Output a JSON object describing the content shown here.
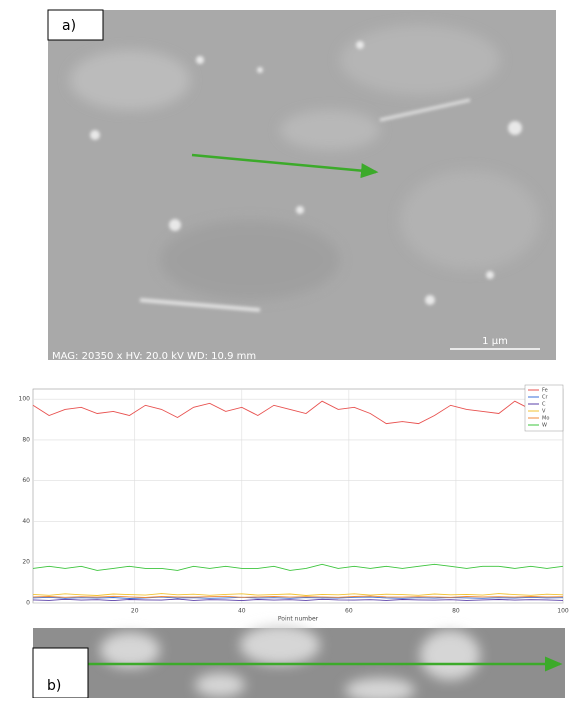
{
  "panel_a": {
    "label": "a)",
    "caption": "MAG: 20350 x  HV: 20.0 kV  WD: 10.9 mm",
    "scale_bar": "1 µm"
  },
  "panel_b": {
    "label": "b)"
  },
  "chart_data": {
    "type": "line",
    "x_label": "Point number",
    "x": [
      1,
      4,
      7,
      10,
      13,
      16,
      19,
      22,
      25,
      28,
      31,
      34,
      37,
      40,
      43,
      46,
      49,
      52,
      55,
      58,
      61,
      64,
      67,
      70,
      73,
      76,
      79,
      82,
      85,
      88,
      91,
      94,
      97,
      100
    ],
    "xlim": [
      1,
      100
    ],
    "xticks": [
      20,
      40,
      60,
      80,
      100
    ],
    "ylim": [
      0,
      105
    ],
    "yticks": [
      0,
      20,
      40,
      60,
      80,
      100
    ],
    "grid": true,
    "legend": "top-right",
    "series": [
      {
        "name": "Fe",
        "color": "#e8514f",
        "values": [
          97,
          92,
          95,
          96,
          93,
          94,
          92,
          97,
          95,
          91,
          96,
          98,
          94,
          96,
          92,
          97,
          95,
          93,
          99,
          95,
          96,
          93,
          88,
          89,
          88,
          92,
          97,
          95,
          94,
          93,
          99,
          95,
          94,
          96
        ]
      },
      {
        "name": "Cr",
        "color": "#3b6fd8",
        "values": [
          2.5,
          2.8,
          2.3,
          2.6,
          2.4,
          2.7,
          2.2,
          2.5,
          2.9,
          2.4,
          2.6,
          2.3,
          2.5,
          2.8,
          2.4,
          2.6,
          2.3,
          2.7,
          2.5,
          2.4,
          2.8,
          2.9,
          2.5,
          2.3,
          2.6,
          2.4,
          2.7,
          2.5,
          2.3,
          2.6,
          2.4,
          2.8,
          2.5,
          2.6
        ]
      },
      {
        "name": "C",
        "color": "#5a3fa8",
        "values": [
          1.5,
          1.3,
          1.8,
          1.4,
          1.6,
          1.2,
          1.7,
          1.5,
          1.4,
          1.9,
          1.3,
          1.6,
          1.5,
          1.2,
          1.7,
          1.4,
          1.6,
          1.3,
          1.8,
          1.5,
          1.4,
          1.6,
          1.3,
          1.7,
          1.5,
          1.4,
          1.6,
          1.3,
          1.5,
          1.7,
          1.4,
          1.6,
          1.5,
          1.3
        ]
      },
      {
        "name": "V",
        "color": "#f2c230",
        "values": [
          4.2,
          3.8,
          4.5,
          4,
          3.7,
          4.4,
          4.1,
          3.9,
          4.6,
          4,
          4.3,
          3.8,
          4.2,
          4.5,
          3.9,
          4.1,
          4.4,
          3.7,
          4.2,
          4,
          4.5,
          3.9,
          4.3,
          4.1,
          3.8,
          4.4,
          4,
          4.2,
          3.9,
          4.6,
          4.1,
          3.8,
          4.3,
          4
        ]
      },
      {
        "name": "Mo",
        "color": "#f08a3a",
        "values": [
          3,
          3.2,
          2.8,
          3.1,
          2.9,
          3.3,
          3,
          2.7,
          3.2,
          3,
          2.9,
          3.1,
          3.3,
          2.8,
          3,
          3.2,
          2.9,
          3.1,
          3,
          2.8,
          3.2,
          3.4,
          3,
          2.9,
          3.1,
          3,
          2.8,
          3.2,
          3,
          3.1,
          2.9,
          3.2,
          3,
          3.1
        ]
      },
      {
        "name": "W",
        "color": "#3cc43c",
        "values": [
          17,
          18,
          17,
          18,
          16,
          17,
          18,
          17,
          17,
          16,
          18,
          17,
          18,
          17,
          17,
          18,
          16,
          17,
          19,
          17,
          18,
          17,
          18,
          17,
          18,
          19,
          18,
          17,
          18,
          18,
          17,
          18,
          17,
          18
        ]
      }
    ]
  }
}
